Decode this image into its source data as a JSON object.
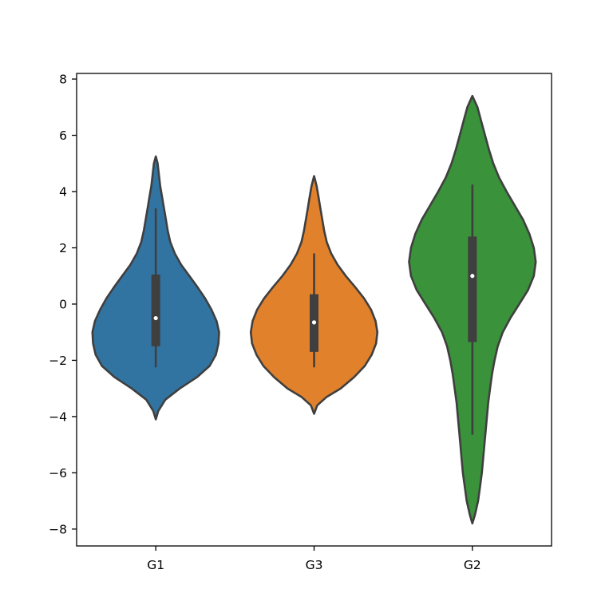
{
  "chart_data": {
    "type": "violin",
    "title": "",
    "xlabel": "",
    "ylabel": "",
    "ylim": [
      -8.6,
      8.2
    ],
    "yticks": [
      -8,
      -6,
      -4,
      -2,
      0,
      2,
      4,
      6,
      8
    ],
    "ytick_labels": [
      "−8",
      "−6",
      "−4",
      "−2",
      "0",
      "2",
      "4",
      "6",
      "8"
    ],
    "categories": [
      "G1",
      "G3",
      "G2"
    ],
    "grid": false,
    "legend": "none",
    "series": [
      {
        "category": "G1",
        "color": "#3274a1",
        "median": -0.5,
        "q1": -1.5,
        "q3": 1.05,
        "whisker_low": -2.25,
        "whisker_high": 3.4,
        "min": -4.1,
        "max": 5.25,
        "density": [
          [
            -4.1,
            0.0
          ],
          [
            -3.8,
            0.04
          ],
          [
            -3.4,
            0.15
          ],
          [
            -3.0,
            0.38
          ],
          [
            -2.6,
            0.65
          ],
          [
            -2.2,
            0.85
          ],
          [
            -1.8,
            0.95
          ],
          [
            -1.4,
            0.99
          ],
          [
            -1.0,
            1.0
          ],
          [
            -0.6,
            0.96
          ],
          [
            -0.2,
            0.88
          ],
          [
            0.2,
            0.78
          ],
          [
            0.6,
            0.66
          ],
          [
            1.0,
            0.53
          ],
          [
            1.4,
            0.4
          ],
          [
            1.8,
            0.3
          ],
          [
            2.2,
            0.23
          ],
          [
            2.6,
            0.19
          ],
          [
            3.0,
            0.16
          ],
          [
            3.4,
            0.13
          ],
          [
            3.8,
            0.1
          ],
          [
            4.2,
            0.07
          ],
          [
            4.6,
            0.05
          ],
          [
            5.0,
            0.03
          ],
          [
            5.25,
            0.0
          ]
        ]
      },
      {
        "category": "G3",
        "color": "#e1812c",
        "median": -0.65,
        "q1": -1.7,
        "q3": 0.35,
        "whisker_low": -2.25,
        "whisker_high": 1.8,
        "min": -3.9,
        "max": 4.55,
        "density": [
          [
            -3.9,
            0.0
          ],
          [
            -3.6,
            0.05
          ],
          [
            -3.3,
            0.2
          ],
          [
            -3.0,
            0.42
          ],
          [
            -2.6,
            0.63
          ],
          [
            -2.2,
            0.8
          ],
          [
            -1.8,
            0.91
          ],
          [
            -1.4,
            0.98
          ],
          [
            -1.0,
            1.0
          ],
          [
            -0.6,
            0.97
          ],
          [
            -0.2,
            0.9
          ],
          [
            0.2,
            0.79
          ],
          [
            0.6,
            0.65
          ],
          [
            1.0,
            0.5
          ],
          [
            1.4,
            0.37
          ],
          [
            1.8,
            0.27
          ],
          [
            2.2,
            0.2
          ],
          [
            2.6,
            0.16
          ],
          [
            3.0,
            0.13
          ],
          [
            3.4,
            0.1
          ],
          [
            3.8,
            0.07
          ],
          [
            4.2,
            0.04
          ],
          [
            4.55,
            0.0
          ]
        ]
      },
      {
        "category": "G2",
        "color": "#3a923a",
        "median": 1.0,
        "q1": -1.35,
        "q3": 2.4,
        "whisker_low": -4.65,
        "whisker_high": 4.25,
        "min": -7.8,
        "max": 7.4,
        "density": [
          [
            -7.8,
            0.0
          ],
          [
            -7.5,
            0.04
          ],
          [
            -7.0,
            0.09
          ],
          [
            -6.5,
            0.12
          ],
          [
            -6.0,
            0.15
          ],
          [
            -5.5,
            0.17
          ],
          [
            -5.0,
            0.19
          ],
          [
            -4.5,
            0.21
          ],
          [
            -4.0,
            0.23
          ],
          [
            -3.5,
            0.25
          ],
          [
            -3.0,
            0.28
          ],
          [
            -2.5,
            0.31
          ],
          [
            -2.0,
            0.35
          ],
          [
            -1.5,
            0.4
          ],
          [
            -1.0,
            0.48
          ],
          [
            -0.5,
            0.6
          ],
          [
            0.0,
            0.74
          ],
          [
            0.5,
            0.88
          ],
          [
            1.0,
            0.97
          ],
          [
            1.5,
            1.0
          ],
          [
            2.0,
            0.97
          ],
          [
            2.5,
            0.9
          ],
          [
            3.0,
            0.8
          ],
          [
            3.5,
            0.67
          ],
          [
            4.0,
            0.54
          ],
          [
            4.5,
            0.42
          ],
          [
            5.0,
            0.33
          ],
          [
            5.5,
            0.26
          ],
          [
            6.0,
            0.2
          ],
          [
            6.5,
            0.14
          ],
          [
            7.0,
            0.08
          ],
          [
            7.4,
            0.0
          ]
        ]
      }
    ]
  }
}
